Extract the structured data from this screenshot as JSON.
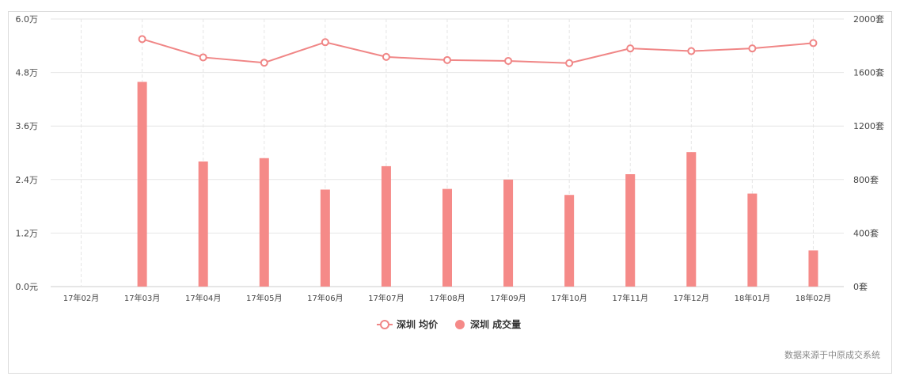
{
  "chart_data": {
    "type": "bar+line",
    "categories": [
      "17年02月",
      "17年03月",
      "17年04月",
      "17年05月",
      "17年06月",
      "17年07月",
      "17年08月",
      "17年09月",
      "17年10月",
      "17年11月",
      "17年12月",
      "18年01月",
      "18年02月"
    ],
    "series": [
      {
        "name": "深圳 均价",
        "type": "line",
        "axis": "left",
        "values": [
          null,
          55500,
          51400,
          50200,
          54800,
          51500,
          50800,
          50600,
          50100,
          53400,
          52800,
          53400,
          54600
        ]
      },
      {
        "name": "深圳 成交量",
        "type": "bar",
        "axis": "right",
        "values": [
          null,
          1530,
          935,
          960,
          725,
          900,
          730,
          800,
          685,
          840,
          1005,
          695,
          270
        ]
      }
    ],
    "y_left": {
      "ticks": [
        "0.0元",
        "1.2万",
        "2.4万",
        "3.6万",
        "4.8万",
        "6.0万"
      ],
      "ylim": [
        0,
        60000
      ]
    },
    "y_right": {
      "ticks": [
        "0套",
        "400套",
        "800套",
        "1200套",
        "1600套",
        "2000套"
      ],
      "ylim": [
        0,
        2000
      ]
    },
    "grid": true,
    "legend": "bottom-center",
    "colors": {
      "bar": "#f58a88",
      "line": "#f08686",
      "grid": "#e6e6e6",
      "axis": "#cccccc"
    }
  },
  "source_text": "数据来源于中原成交系统"
}
